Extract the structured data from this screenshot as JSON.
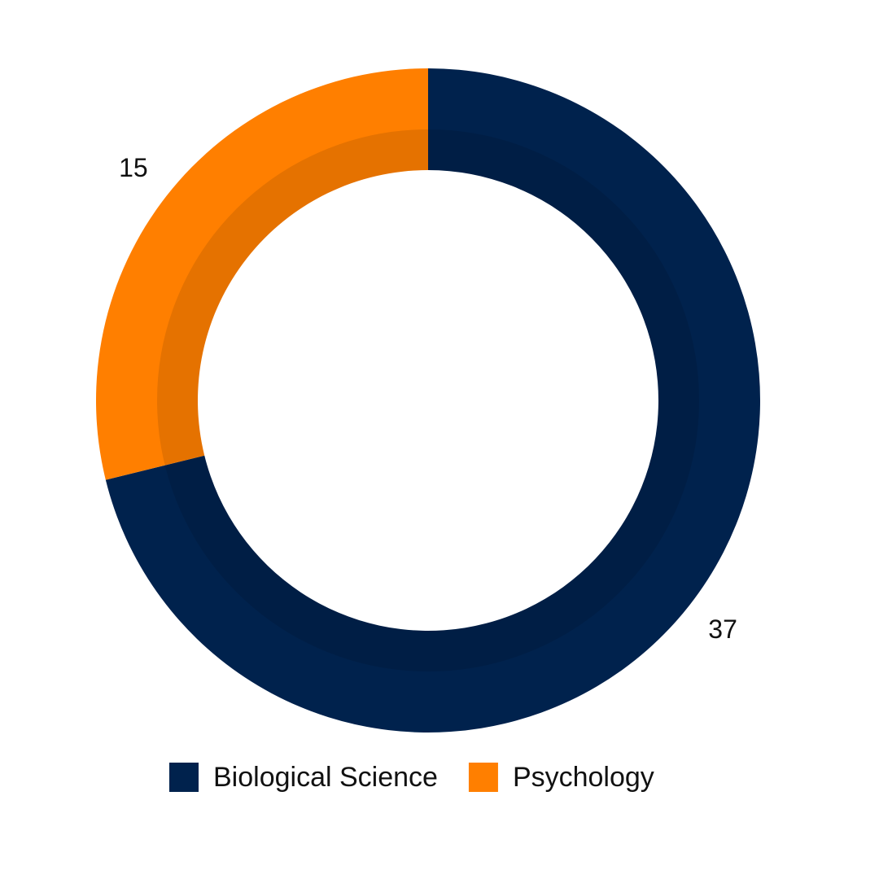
{
  "chart_data": {
    "type": "donut",
    "categories": [
      "Biological Science",
      "Psychology"
    ],
    "values": [
      37,
      15
    ],
    "colors": [
      "#00224d",
      "#ff7f00"
    ]
  }
}
